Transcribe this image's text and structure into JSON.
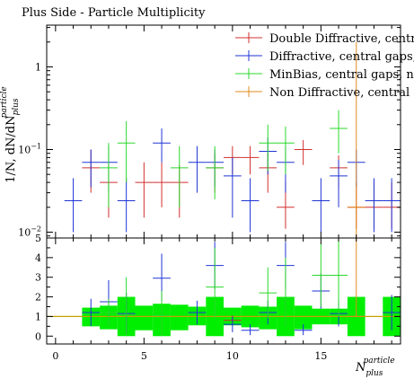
{
  "chart_data": [
    {
      "type": "scatter",
      "title": "Plus Side - Particle Multiplicity",
      "ylabel": "1/N, dN/dN",
      "ylabel_sup": "particle",
      "ylabel_sub": "plus",
      "yscale": "log",
      "ylim": [
        0.0085,
        3.2
      ],
      "xlim": [
        -0.5,
        19.5
      ],
      "yticks": [
        {
          "value": 0.01,
          "base": "10",
          "exp": "−2"
        },
        {
          "value": 0.1,
          "base": "10",
          "exp": "−1"
        },
        {
          "value": 1,
          "base": "1",
          "exp": ""
        }
      ],
      "legend_position": "top-right",
      "series": [
        {
          "name": "Double Diffractive, central gaps",
          "color": "#d32f2f",
          "points": [
            {
              "x": 2,
              "y": 0.06,
              "ylo": 0.03,
              "yhi": 0.1
            },
            {
              "x": 3,
              "y": 0.04,
              "ylo": 0.015,
              "yhi": 0.07
            },
            {
              "x": 5,
              "y": 0.04,
              "ylo": 0.015,
              "yhi": 0.07
            },
            {
              "x": 6,
              "y": 0.04,
              "ylo": 0.02,
              "yhi": 0.07
            },
            {
              "x": 7,
              "y": 0.04,
              "ylo": 0.015,
              "yhi": 0.065
            },
            {
              "x": 9,
              "y": 0.06,
              "ylo": 0.03,
              "yhi": 0.09
            },
            {
              "x": 10,
              "y": 0.08,
              "ylo": 0.05,
              "yhi": 0.11
            },
            {
              "x": 11,
              "y": 0.08,
              "ylo": 0.05,
              "yhi": 0.11
            },
            {
              "x": 12,
              "y": 0.06,
              "ylo": 0.03,
              "yhi": 0.09
            },
            {
              "x": 13,
              "y": 0.02,
              "ylo": 0.011,
              "yhi": 0.04
            },
            {
              "x": 14,
              "y": 0.1,
              "ylo": 0.065,
              "yhi": 0.13
            },
            {
              "x": 16,
              "y": 0.06,
              "ylo": 0.035,
              "yhi": 0.085
            },
            {
              "x": 17,
              "y": 0.02,
              "ylo": 0.011,
              "yhi": 0.04
            },
            {
              "x": 18,
              "y": 0.02,
              "ylo": 0.011,
              "yhi": 0.04
            },
            {
              "x": 19,
              "y": 0.02,
              "ylo": 0.011,
              "yhi": 0.04
            }
          ]
        },
        {
          "name": "Diffractive, central gaps, no ...",
          "color": "#1e35d6",
          "points": [
            {
              "x": 1,
              "y": 0.024,
              "ylo": 0.01,
              "yhi": 0.045
            },
            {
              "x": 2,
              "y": 0.07,
              "ylo": 0.035,
              "yhi": 0.1
            },
            {
              "x": 3,
              "y": 0.07,
              "ylo": 0.03,
              "yhi": 0.11
            },
            {
              "x": 4,
              "y": 0.024,
              "ylo": 0.01,
              "yhi": 0.045
            },
            {
              "x": 6,
              "y": 0.12,
              "ylo": 0.07,
              "yhi": 0.18
            },
            {
              "x": 8,
              "y": 0.07,
              "ylo": 0.03,
              "yhi": 0.11
            },
            {
              "x": 9,
              "y": 0.07,
              "ylo": 0.035,
              "yhi": 0.1
            },
            {
              "x": 10,
              "y": 0.048,
              "ylo": 0.015,
              "yhi": 0.08
            },
            {
              "x": 11,
              "y": 0.024,
              "ylo": 0.01,
              "yhi": 0.045
            },
            {
              "x": 12,
              "y": 0.095,
              "ylo": 0.05,
              "yhi": 0.14
            },
            {
              "x": 13,
              "y": 0.07,
              "ylo": 0.03,
              "yhi": 0.11
            },
            {
              "x": 15,
              "y": 0.024,
              "ylo": 0.01,
              "yhi": 0.045
            },
            {
              "x": 16,
              "y": 0.048,
              "ylo": 0.02,
              "yhi": 0.075
            },
            {
              "x": 17,
              "y": 0.07,
              "ylo": 0.035,
              "yhi": 0.1
            },
            {
              "x": 18,
              "y": 0.024,
              "ylo": 0.01,
              "yhi": 0.045
            },
            {
              "x": 19,
              "y": 0.024,
              "ylo": 0.01,
              "yhi": 0.045
            }
          ]
        },
        {
          "name": "MinBias, central gaps, no ...",
          "color": "#2bd82b",
          "points": [
            {
              "x": 3,
              "y": 0.06,
              "ylo": 0.02,
              "yhi": 0.12
            },
            {
              "x": 4,
              "y": 0.12,
              "ylo": 0.04,
              "yhi": 0.22
            },
            {
              "x": 7,
              "y": 0.06,
              "ylo": 0.02,
              "yhi": 0.11
            },
            {
              "x": 9,
              "y": 0.06,
              "ylo": 0.025,
              "yhi": 0.11
            },
            {
              "x": 12,
              "y": 0.12,
              "ylo": 0.055,
              "yhi": 0.2
            },
            {
              "x": 13,
              "y": 0.12,
              "ylo": 0.05,
              "yhi": 0.19
            },
            {
              "x": 16,
              "y": 0.18,
              "ylo": 0.09,
              "yhi": 0.3
            }
          ]
        },
        {
          "name": "Non Diffractive, central gaps",
          "color": "#e08a1e",
          "points": [
            {
              "x": 17,
              "y": 0.02,
              "ylo": 0.0085,
              "yhi": 2.0
            }
          ]
        }
      ]
    },
    {
      "type": "scatter",
      "xlabel": "N",
      "xlabel_sup": "particle",
      "xlabel_sub": "plus",
      "xlim": [
        -0.5,
        19.5
      ],
      "ylim": [
        -0.4,
        5
      ],
      "xticks": [
        0,
        5,
        10,
        15
      ],
      "yticks": [
        0,
        1,
        2,
        3,
        4,
        5
      ],
      "reference_line": 1,
      "band": {
        "color": "#00ee00",
        "bins": [
          {
            "x": 2,
            "lo": 0.5,
            "hi": 1.45
          },
          {
            "x": 3,
            "lo": 0.35,
            "hi": 1.55
          },
          {
            "x": 4,
            "lo": 0.0,
            "hi": 2.0
          },
          {
            "x": 5,
            "lo": 0.3,
            "hi": 1.55
          },
          {
            "x": 6,
            "lo": 0.0,
            "hi": 1.65
          },
          {
            "x": 7,
            "lo": 0.3,
            "hi": 1.6
          },
          {
            "x": 8,
            "lo": 0.55,
            "hi": 1.5
          },
          {
            "x": 9,
            "lo": 0.0,
            "hi": 2.0
          },
          {
            "x": 10,
            "lo": 0.55,
            "hi": 1.45
          },
          {
            "x": 11,
            "lo": 0.45,
            "hi": 1.55
          },
          {
            "x": 12,
            "lo": 0.35,
            "hi": 1.5
          },
          {
            "x": 13,
            "lo": 0.0,
            "hi": 2.0
          },
          {
            "x": 14,
            "lo": 0.35,
            "hi": 1.55
          },
          {
            "x": 15,
            "lo": 0.6,
            "hi": 1.4
          },
          {
            "x": 16,
            "lo": 0.6,
            "hi": 1.4
          },
          {
            "x": 17,
            "lo": 0.0,
            "hi": 2.0
          },
          {
            "x": 19,
            "lo": 0.0,
            "hi": 2.0
          }
        ]
      },
      "series": [
        {
          "name": "Double Diffractive, central gaps",
          "color": "#d32f2f",
          "points": [
            {
              "x": 10,
              "y": 0.8,
              "ylo": 0.55,
              "yhi": 1.05
            }
          ]
        },
        {
          "name": "Diffractive, central gaps, no ...",
          "color": "#1e35d6",
          "points": [
            {
              "x": 2,
              "y": 1.2,
              "ylo": 0.5,
              "yhi": 1.9
            },
            {
              "x": 3,
              "y": 1.75,
              "ylo": 0.6,
              "yhi": 2.85
            },
            {
              "x": 4,
              "y": 1.15,
              "ylo": 0.1,
              "yhi": 2.2
            },
            {
              "x": 6,
              "y": 2.95,
              "ylo": 1.75,
              "yhi": 4.2
            },
            {
              "x": 8,
              "y": 1.2,
              "ylo": 0.6,
              "yhi": 1.8
            },
            {
              "x": 9,
              "y": 3.6,
              "ylo": 2.4,
              "yhi": 4.8
            },
            {
              "x": 10,
              "y": 0.6,
              "ylo": 0.2,
              "yhi": 1.0
            },
            {
              "x": 11,
              "y": 0.3,
              "ylo": 0.05,
              "yhi": 0.6
            },
            {
              "x": 12,
              "y": 1.2,
              "ylo": 0.6,
              "yhi": 1.8
            },
            {
              "x": 13,
              "y": 3.6,
              "ylo": 2.4,
              "yhi": 4.8
            },
            {
              "x": 14,
              "y": 0.3,
              "ylo": 0.05,
              "yhi": 0.6
            },
            {
              "x": 15,
              "y": 2.3,
              "ylo": 1.4,
              "yhi": 3.2
            },
            {
              "x": 16,
              "y": 1.15,
              "ylo": 0.5,
              "yhi": 1.8
            },
            {
              "x": 19,
              "y": 1.2,
              "ylo": 0.3,
              "yhi": 2.1
            }
          ]
        },
        {
          "name": "MinBias, central gaps, no ...",
          "color": "#2bd82b",
          "points": [
            {
              "x": 3,
              "y": 1.2,
              "ylo": 0.5,
              "yhi": 1.9
            },
            {
              "x": 4,
              "y": 1.1,
              "ylo": 0.0,
              "yhi": 3.0
            },
            {
              "x": 6,
              "y": 1.05,
              "ylo": 0.0,
              "yhi": 2.3
            },
            {
              "x": 9,
              "y": 2.5,
              "ylo": 0.9,
              "yhi": 4.5
            },
            {
              "x": 12,
              "y": 2.2,
              "ylo": 0.9,
              "yhi": 3.5
            },
            {
              "x": 13,
              "y": 1.9,
              "ylo": 0.5,
              "yhi": 4.0
            },
            {
              "x": 15,
              "y": 3.1,
              "ylo": 1.5,
              "yhi": 4.7
            },
            {
              "x": 16,
              "y": 3.1,
              "ylo": 1.0,
              "yhi": 5.0
            }
          ]
        },
        {
          "name": "Non Diffractive, central gaps",
          "color": "#e08a1e",
          "points": [
            {
              "x": 17,
              "y": 1.0,
              "ylo": 1.0,
              "yhi": 5.0
            }
          ]
        }
      ]
    }
  ]
}
